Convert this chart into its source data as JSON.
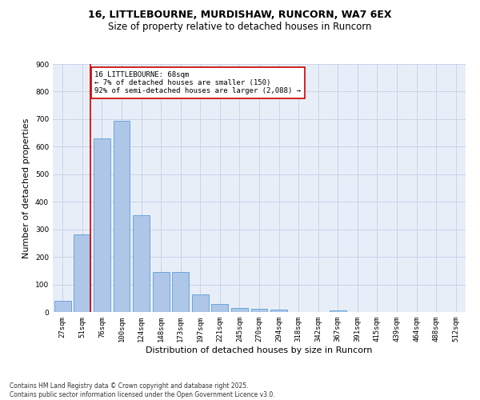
{
  "title_line1": "16, LITTLEBOURNE, MURDISHAW, RUNCORN, WA7 6EX",
  "title_line2": "Size of property relative to detached houses in Runcorn",
  "xlabel": "Distribution of detached houses by size in Runcorn",
  "ylabel": "Number of detached properties",
  "footnote_line1": "Contains HM Land Registry data © Crown copyright and database right 2025.",
  "footnote_line2": "Contains public sector information licensed under the Open Government Licence v3.0.",
  "categories": [
    "27sqm",
    "51sqm",
    "76sqm",
    "100sqm",
    "124sqm",
    "148sqm",
    "173sqm",
    "197sqm",
    "221sqm",
    "245sqm",
    "270sqm",
    "294sqm",
    "318sqm",
    "342sqm",
    "367sqm",
    "391sqm",
    "415sqm",
    "439sqm",
    "464sqm",
    "488sqm",
    "512sqm"
  ],
  "values": [
    42,
    282,
    630,
    695,
    350,
    145,
    145,
    65,
    28,
    14,
    12,
    10,
    0,
    0,
    5,
    0,
    0,
    0,
    0,
    0,
    0
  ],
  "bar_color": "#aec6e8",
  "bar_edge_color": "#5a9fd4",
  "grid_color": "#c8d4e8",
  "background_color": "#e8eef8",
  "annotation_box_color": "#cc0000",
  "red_line_x": 1.43,
  "annotation_title": "16 LITTLEBOURNE: 68sqm",
  "annotation_line2": "← 7% of detached houses are smaller (150)",
  "annotation_line3": "92% of semi-detached houses are larger (2,088) →",
  "ylim": [
    0,
    900
  ],
  "yticks": [
    0,
    100,
    200,
    300,
    400,
    500,
    600,
    700,
    800,
    900
  ],
  "title_fontsize": 9,
  "subtitle_fontsize": 8.5,
  "annotation_fontsize": 6.5,
  "xlabel_fontsize": 8,
  "ylabel_fontsize": 8,
  "tick_fontsize": 6.5,
  "footnote_fontsize": 5.5
}
